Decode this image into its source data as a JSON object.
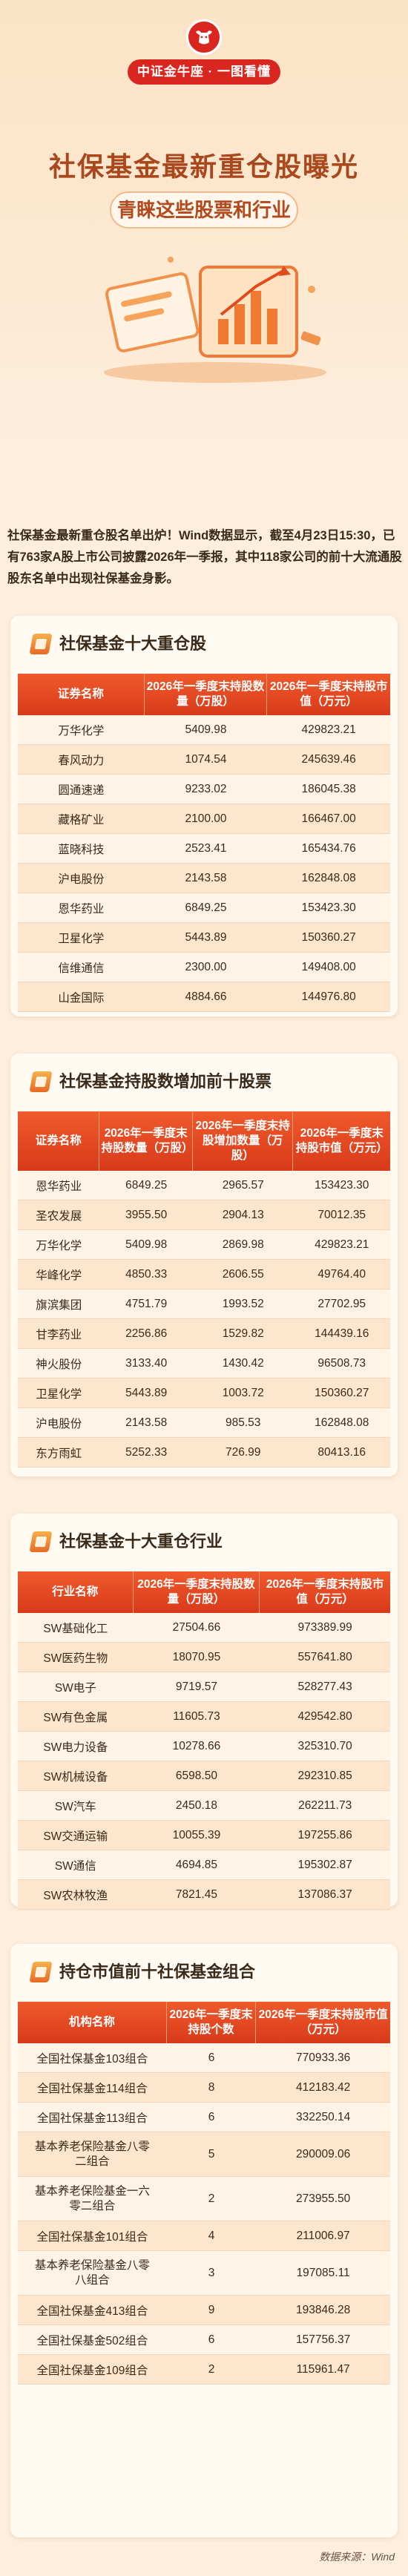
{
  "header": {
    "logo_ribbon": "中证金牛座 · 一图看懂",
    "title": "社保基金最新重仓股曝光",
    "subtitle": "青睐这些股票和行业"
  },
  "intro": "社保基金最新重仓股名单出炉！Wind数据显示，截至4月23日15:30，已有763家A股上市公司披露2026年一季报，其中118家公司的前十大流通股股东名单中出现社保基金身影。",
  "sections": [
    {
      "title": "社保基金十大重仓股",
      "headers": [
        "证券名称",
        "2026年一季度末持股数量（万股）",
        "2026年一季度末持股市值（万元）"
      ],
      "rows": [
        [
          "万华化学",
          "5409.98",
          "429823.21"
        ],
        [
          "春风动力",
          "1074.54",
          "245639.46"
        ],
        [
          "圆通速递",
          "9233.02",
          "186045.38"
        ],
        [
          "藏格矿业",
          "2100.00",
          "166467.00"
        ],
        [
          "蓝晓科技",
          "2523.41",
          "165434.76"
        ],
        [
          "沪电股份",
          "2143.58",
          "162848.08"
        ],
        [
          "恩华药业",
          "6849.25",
          "153423.30"
        ],
        [
          "卫星化学",
          "5443.89",
          "150360.27"
        ],
        [
          "信维通信",
          "2300.00",
          "149408.00"
        ],
        [
          "山金国际",
          "4884.66",
          "144976.80"
        ]
      ]
    },
    {
      "title": "社保基金持股数增加前十股票",
      "headers": [
        "证券名称",
        "2026年一季度末持股数量（万股）",
        "2026年一季度末持股增加数量（万股）",
        "2026年一季度末持股市值（万元）"
      ],
      "rows": [
        [
          "恩华药业",
          "6849.25",
          "2965.57",
          "153423.30"
        ],
        [
          "圣农发展",
          "3955.50",
          "2904.13",
          "70012.35"
        ],
        [
          "万华化学",
          "5409.98",
          "2869.98",
          "429823.21"
        ],
        [
          "华峰化学",
          "4850.33",
          "2606.55",
          "49764.40"
        ],
        [
          "旗滨集团",
          "4751.79",
          "1993.52",
          "27702.95"
        ],
        [
          "甘李药业",
          "2256.86",
          "1529.82",
          "144439.16"
        ],
        [
          "神火股份",
          "3133.40",
          "1430.42",
          "96508.73"
        ],
        [
          "卫星化学",
          "5443.89",
          "1003.72",
          "150360.27"
        ],
        [
          "沪电股份",
          "2143.58",
          "985.53",
          "162848.08"
        ],
        [
          "东方雨虹",
          "5252.33",
          "726.99",
          "80413.16"
        ]
      ]
    },
    {
      "title": "社保基金十大重仓行业",
      "headers": [
        "行业名称",
        "2026年一季度末持股数量（万股）",
        "2026年一季度末持股市值（万元）"
      ],
      "rows": [
        [
          "SW基础化工",
          "27504.66",
          "973389.99"
        ],
        [
          "SW医药生物",
          "18070.95",
          "557641.80"
        ],
        [
          "SW电子",
          "9719.57",
          "528277.43"
        ],
        [
          "SW有色金属",
          "11605.73",
          "429542.80"
        ],
        [
          "SW电力设备",
          "10278.66",
          "325310.70"
        ],
        [
          "SW机械设备",
          "6598.50",
          "292310.85"
        ],
        [
          "SW汽车",
          "2450.18",
          "262211.73"
        ],
        [
          "SW交通运输",
          "10055.39",
          "197255.86"
        ],
        [
          "SW通信",
          "4694.85",
          "195302.87"
        ],
        [
          "SW农林牧渔",
          "7821.45",
          "137086.37"
        ]
      ]
    },
    {
      "title": "持仓市值前十社保基金组合",
      "headers": [
        "机构名称",
        "2026年一季度末持股个数",
        "2026年一季度末持股市值（万元）"
      ],
      "rows": [
        [
          "全国社保基金103组合",
          "6",
          "770933.36"
        ],
        [
          "全国社保基金114组合",
          "8",
          "412183.42"
        ],
        [
          "全国社保基金113组合",
          "6",
          "332250.14"
        ],
        [
          "基本养老保险基金八零二组合",
          "5",
          "290009.06"
        ],
        [
          "基本养老保险基金一六零二组合",
          "2",
          "273955.50"
        ],
        [
          "全国社保基金101组合",
          "4",
          "211006.97"
        ],
        [
          "基本养老保险基金八零八组合",
          "3",
          "197085.11"
        ],
        [
          "全国社保基金413组合",
          "9",
          "193846.28"
        ],
        [
          "全国社保基金502组合",
          "6",
          "157756.37"
        ],
        [
          "全国社保基金109组合",
          "2",
          "115961.47"
        ]
      ]
    }
  ],
  "source": "数据来源：Wind",
  "colors": {
    "header_red": "#d83a1a",
    "title_brown": "#a8481c",
    "row_light": "#fff4e6",
    "row_dark": "#fde6cd"
  }
}
